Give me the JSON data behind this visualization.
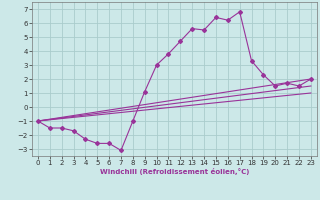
{
  "xlabel": "Windchill (Refroidissement éolien,°C)",
  "background_color": "#cce8e8",
  "grid_color": "#aacccc",
  "line_color": "#993399",
  "xlim": [
    -0.5,
    23.5
  ],
  "ylim": [
    -3.5,
    7.5
  ],
  "yticks": [
    -3,
    -2,
    -1,
    0,
    1,
    2,
    3,
    4,
    5,
    6,
    7
  ],
  "xticks": [
    0,
    1,
    2,
    3,
    4,
    5,
    6,
    7,
    8,
    9,
    10,
    11,
    12,
    13,
    14,
    15,
    16,
    17,
    18,
    19,
    20,
    21,
    22,
    23
  ],
  "line1_x": [
    0,
    1,
    2,
    3,
    4,
    5,
    6,
    7,
    8,
    9,
    10,
    11,
    12,
    13,
    14,
    15,
    16,
    17,
    18,
    19,
    20,
    21,
    22,
    23
  ],
  "line1_y": [
    -1.0,
    -1.5,
    -1.5,
    -1.7,
    -2.3,
    -2.6,
    -2.6,
    -3.1,
    -1.0,
    1.1,
    3.0,
    3.8,
    4.7,
    5.6,
    5.5,
    6.4,
    6.2,
    6.8,
    3.3,
    2.3,
    1.5,
    1.7,
    1.5,
    2.0
  ],
  "line2_x": [
    0,
    23
  ],
  "line2_y": [
    -1.0,
    2.0
  ],
  "line3_x": [
    0,
    23
  ],
  "line3_y": [
    -1.0,
    1.5
  ],
  "line4_x": [
    0,
    23
  ],
  "line4_y": [
    -1.0,
    1.0
  ],
  "tick_fontsize": 5,
  "xlabel_fontsize": 5,
  "marker_size": 2.0,
  "linewidth": 0.8
}
